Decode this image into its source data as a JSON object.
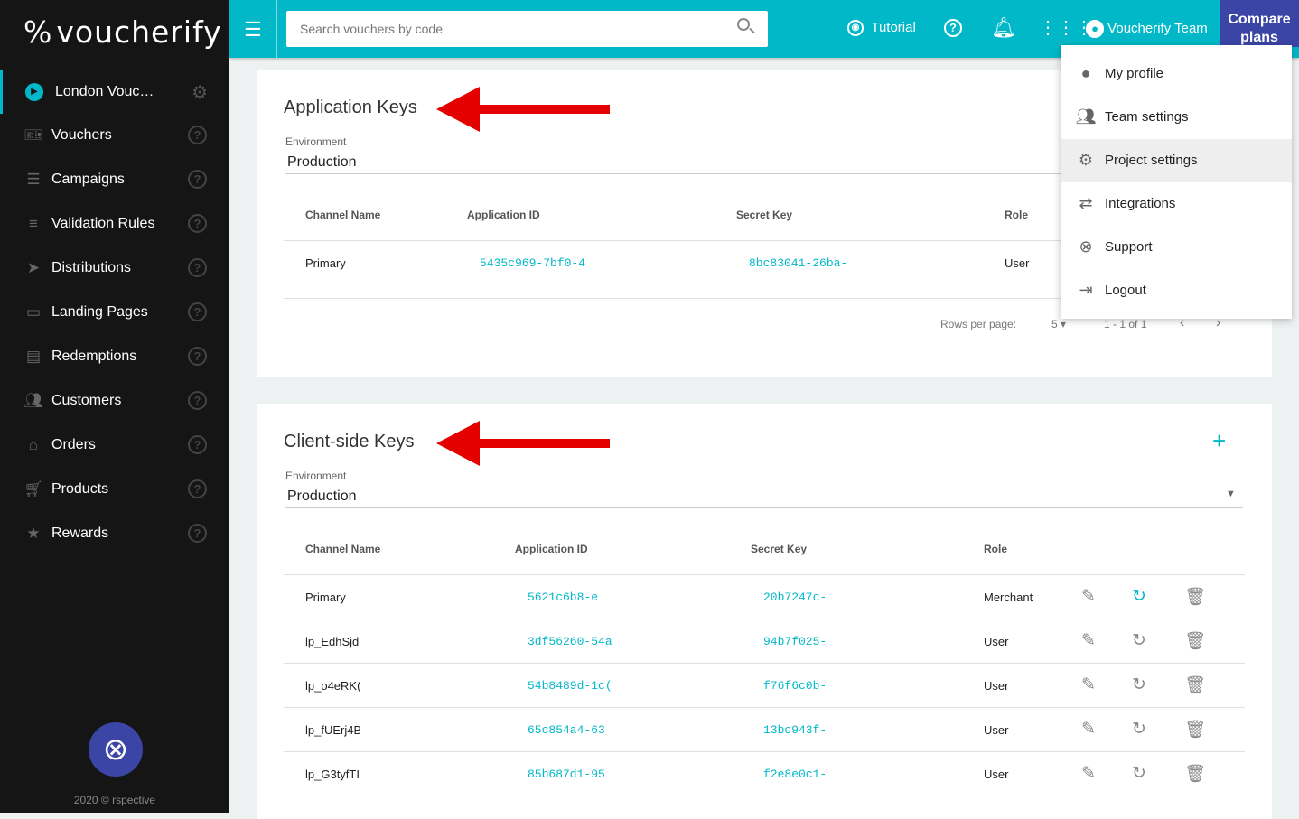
{
  "sidebar": {
    "logo": "voucherify",
    "project": "London Vouc…",
    "items": [
      {
        "label": "Vouchers",
        "icon": "voucher-icon"
      },
      {
        "label": "Campaigns",
        "icon": "campaigns-icon"
      },
      {
        "label": "Validation Rules",
        "icon": "rules-icon"
      },
      {
        "label": "Distributions",
        "icon": "send-icon"
      },
      {
        "label": "Landing Pages",
        "icon": "page-icon"
      },
      {
        "label": "Redemptions",
        "icon": "list-icon"
      },
      {
        "label": "Customers",
        "icon": "people-icon"
      },
      {
        "label": "Orders",
        "icon": "basket-icon"
      },
      {
        "label": "Products",
        "icon": "cart-icon"
      },
      {
        "label": "Rewards",
        "icon": "star-icon"
      }
    ],
    "copyright": "2020 © rspective"
  },
  "header": {
    "search_placeholder": "Search vouchers by code",
    "tutorial": "Tutorial",
    "user": "Voucherify Team",
    "compare": "Compare plans",
    "accent": "#00b8c8",
    "brand": "#3a45a6"
  },
  "menu": {
    "items": [
      {
        "label": "My profile",
        "icon": "account-icon"
      },
      {
        "label": "Team settings",
        "icon": "team-icon"
      },
      {
        "label": "Project settings",
        "icon": "gear-icon",
        "highlighted": true
      },
      {
        "label": "Integrations",
        "icon": "swap-icon"
      },
      {
        "label": "Support",
        "icon": "lifebuoy-icon"
      },
      {
        "label": "Logout",
        "icon": "logout-icon"
      }
    ]
  },
  "app_keys": {
    "title": "Application Keys",
    "env_label": "Environment",
    "env_value": "Production",
    "columns": [
      "Channel Name",
      "Application ID",
      "Secret Key",
      "Role"
    ],
    "rows": [
      {
        "channel": "Primary",
        "app_id": "5435c969-7bf0-4",
        "secret": "8bc83041-26ba-",
        "role": "User"
      }
    ],
    "rows_per_page_label": "Rows per page:",
    "rows_per_page": "5",
    "range": "1 - 1 of 1"
  },
  "client_keys": {
    "title": "Client-side Keys",
    "env_label": "Environment",
    "env_value": "Production",
    "columns": [
      "Channel Name",
      "Application ID",
      "Secret Key",
      "Role"
    ],
    "rows": [
      {
        "channel": "Primary",
        "app_id": "5621c6b8-e",
        "secret": "20b7247c-",
        "role": "Merchant"
      },
      {
        "channel": "lp_EdhSjd",
        "app_id": "3df56260-54a",
        "secret": "94b7f025-",
        "role": "User"
      },
      {
        "channel": "lp_o4eRK(",
        "app_id": "54b8489d-1c(",
        "secret": "f76f6c0b-",
        "role": "User"
      },
      {
        "channel": "lp_fUErj4B",
        "app_id": "65c854a4-63",
        "secret": "13bc943f-",
        "role": "User"
      },
      {
        "channel": "lp_G3tyfTI",
        "app_id": "85b687d1-95",
        "secret": "f2e8e0c1-",
        "role": "User"
      }
    ]
  }
}
